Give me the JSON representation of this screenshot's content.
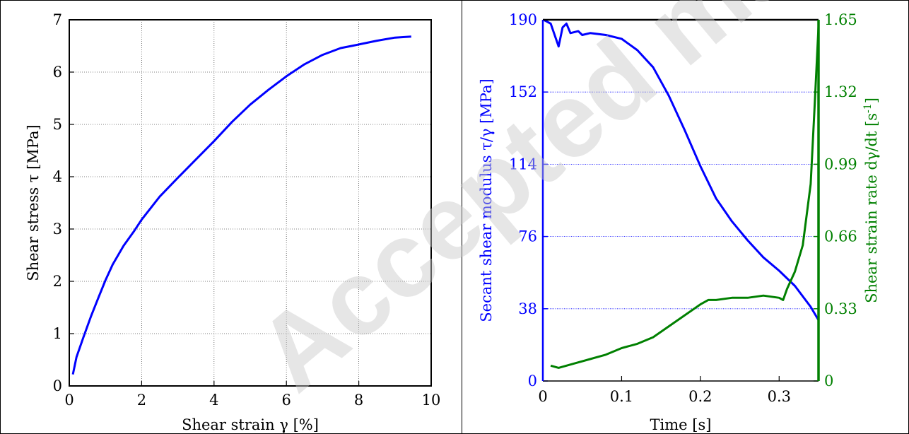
{
  "watermark": "Accepted manuscript",
  "colors": {
    "blue": "#0000ff",
    "green": "#008000",
    "grid": "#000000"
  },
  "chart_data": [
    {
      "type": "line",
      "title": "",
      "xlabel": "Shear strain γ [%]",
      "ylabel": "Shear stress τ [MPa]",
      "xlim": [
        0,
        10
      ],
      "ylim": [
        0,
        7
      ],
      "xticks": [
        "0",
        "2",
        "4",
        "6",
        "8",
        "10"
      ],
      "yticks": [
        "0",
        "1",
        "2",
        "3",
        "4",
        "5",
        "6",
        "7"
      ],
      "grid": true,
      "series": [
        {
          "color": "#0000ff",
          "x": [
            0.1,
            0.2,
            0.4,
            0.6,
            0.8,
            1.0,
            1.2,
            1.5,
            1.8,
            2.0,
            2.5,
            3.0,
            3.5,
            4.0,
            4.5,
            5.0,
            5.5,
            6.0,
            6.5,
            7.0,
            7.5,
            7.8,
            8.5,
            9.0,
            9.45
          ],
          "y": [
            0.22,
            0.55,
            0.95,
            1.33,
            1.68,
            2.02,
            2.32,
            2.68,
            2.97,
            3.18,
            3.62,
            3.98,
            4.33,
            4.68,
            5.05,
            5.38,
            5.66,
            5.92,
            6.15,
            6.33,
            6.46,
            6.5,
            6.6,
            6.66,
            6.68
          ]
        }
      ]
    },
    {
      "type": "line",
      "title": "",
      "xlabel": "Time [s]",
      "ylabel_left": "Secant shear modulus τ/γ [MPa]",
      "ylabel_right": "Shear strain rate dγ/dt [s-1]",
      "xlim": [
        0,
        0.35
      ],
      "ylim_left": [
        0,
        190
      ],
      "ylim_right": [
        0,
        1.65
      ],
      "xticks": [
        "0",
        "0.1",
        "0.2",
        "0.3"
      ],
      "yticks_left": [
        "0",
        "38",
        "76",
        "114",
        "152",
        "190"
      ],
      "yticks_right": [
        "0",
        "0.33",
        "0.66",
        "0.99",
        "1.32",
        "1.65"
      ],
      "grid": "horizontal",
      "series": [
        {
          "axis": "left",
          "color": "#0000ff",
          "x": [
            0.001,
            0.01,
            0.02,
            0.025,
            0.03,
            0.035,
            0.045,
            0.05,
            0.06,
            0.08,
            0.1,
            0.12,
            0.14,
            0.16,
            0.18,
            0.2,
            0.22,
            0.24,
            0.26,
            0.28,
            0.3,
            0.32,
            0.34,
            0.35
          ],
          "y": [
            190,
            188,
            176,
            186,
            188,
            183,
            184,
            182,
            183,
            182,
            180,
            174,
            165,
            150,
            132,
            113,
            96,
            84,
            74,
            65,
            58,
            50,
            39,
            32
          ]
        },
        {
          "axis": "right",
          "color": "#008000",
          "x": [
            0.01,
            0.02,
            0.04,
            0.06,
            0.08,
            0.1,
            0.12,
            0.14,
            0.16,
            0.18,
            0.2,
            0.21,
            0.22,
            0.24,
            0.26,
            0.28,
            0.3,
            0.305,
            0.31,
            0.32,
            0.33,
            0.34,
            0.345,
            0.35
          ],
          "y": [
            0.07,
            0.06,
            0.08,
            0.1,
            0.12,
            0.15,
            0.17,
            0.2,
            0.25,
            0.3,
            0.35,
            0.37,
            0.37,
            0.38,
            0.38,
            0.39,
            0.38,
            0.37,
            0.42,
            0.5,
            0.62,
            0.9,
            1.25,
            1.62
          ]
        }
      ]
    }
  ]
}
